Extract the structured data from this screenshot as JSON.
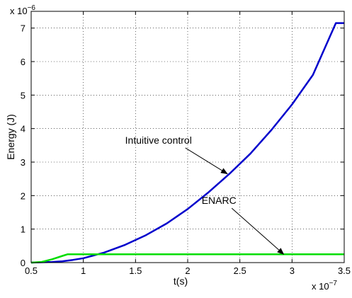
{
  "chart_data": {
    "type": "line",
    "title": "",
    "xlabel": "t(s)",
    "ylabel": "Energy (J)",
    "x_multiplier_label": "x 10",
    "x_multiplier_exp": "−7",
    "y_multiplier_label": "x 10",
    "y_multiplier_exp": "−6",
    "xlim": [
      0.5,
      3.5
    ],
    "ylim": [
      0,
      7.5
    ],
    "x_ticks": [
      0.5,
      1,
      1.5,
      2,
      2.5,
      3,
      3.5
    ],
    "x_tick_labels": [
      "0.5",
      "1",
      "1.5",
      "2",
      "2.5",
      "3",
      "3.5"
    ],
    "y_ticks": [
      0,
      1,
      2,
      3,
      4,
      5,
      6,
      7
    ],
    "y_tick_labels": [
      "0",
      "1",
      "2",
      "3",
      "4",
      "5",
      "6",
      "7"
    ],
    "grid": true,
    "legend": "none",
    "series": [
      {
        "color": "#0000cc",
        "x": [
          0.5,
          0.6,
          0.7,
          0.8,
          0.9,
          1.0,
          1.2,
          1.4,
          1.6,
          1.8,
          2.0,
          2.2,
          2.4,
          2.6,
          2.8,
          3.0,
          3.2,
          3.42,
          3.5
        ],
        "y": [
          0.0,
          0.01,
          0.02,
          0.04,
          0.08,
          0.13,
          0.3,
          0.53,
          0.82,
          1.17,
          1.6,
          2.1,
          2.65,
          3.25,
          3.95,
          4.72,
          5.6,
          7.15,
          7.15
        ]
      },
      {
        "color": "#00dd00",
        "x": [
          0.5,
          0.6,
          0.7,
          0.8,
          0.85,
          1.0,
          1.5,
          2.0,
          2.5,
          3.0,
          3.5
        ],
        "y": [
          0.0,
          0.02,
          0.1,
          0.2,
          0.25,
          0.25,
          0.25,
          0.25,
          0.25,
          0.25,
          0.25
        ]
      }
    ],
    "annotations": [
      {
        "text": "Intuitive control",
        "x": 1.72,
        "y": 3.55,
        "arrow_to": [
          2.38,
          2.65
        ]
      },
      {
        "text": "ENARC",
        "x": 2.3,
        "y": 1.75,
        "arrow_to": [
          2.92,
          0.25
        ]
      }
    ]
  }
}
